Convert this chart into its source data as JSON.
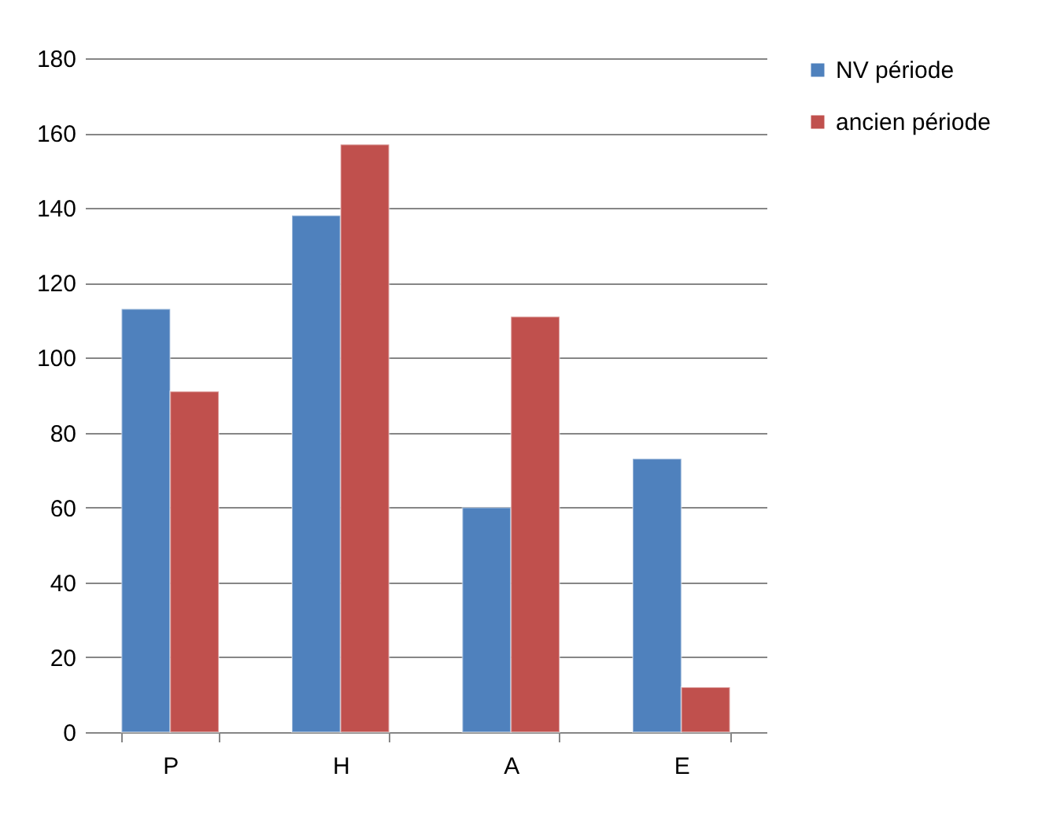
{
  "chart_data": {
    "type": "bar",
    "categories": [
      "P",
      "H",
      "A",
      "E"
    ],
    "series": [
      {
        "name": "NV période",
        "color": "#4f81bd",
        "values": [
          113,
          138,
          60,
          73
        ]
      },
      {
        "name": "ancien période",
        "color": "#c0504d",
        "values": [
          91,
          157,
          111,
          12
        ]
      }
    ],
    "ylim": [
      0,
      180
    ],
    "yticks": [
      0,
      20,
      40,
      60,
      80,
      100,
      120,
      140,
      160,
      180
    ],
    "grid": "y",
    "legend": "right"
  }
}
